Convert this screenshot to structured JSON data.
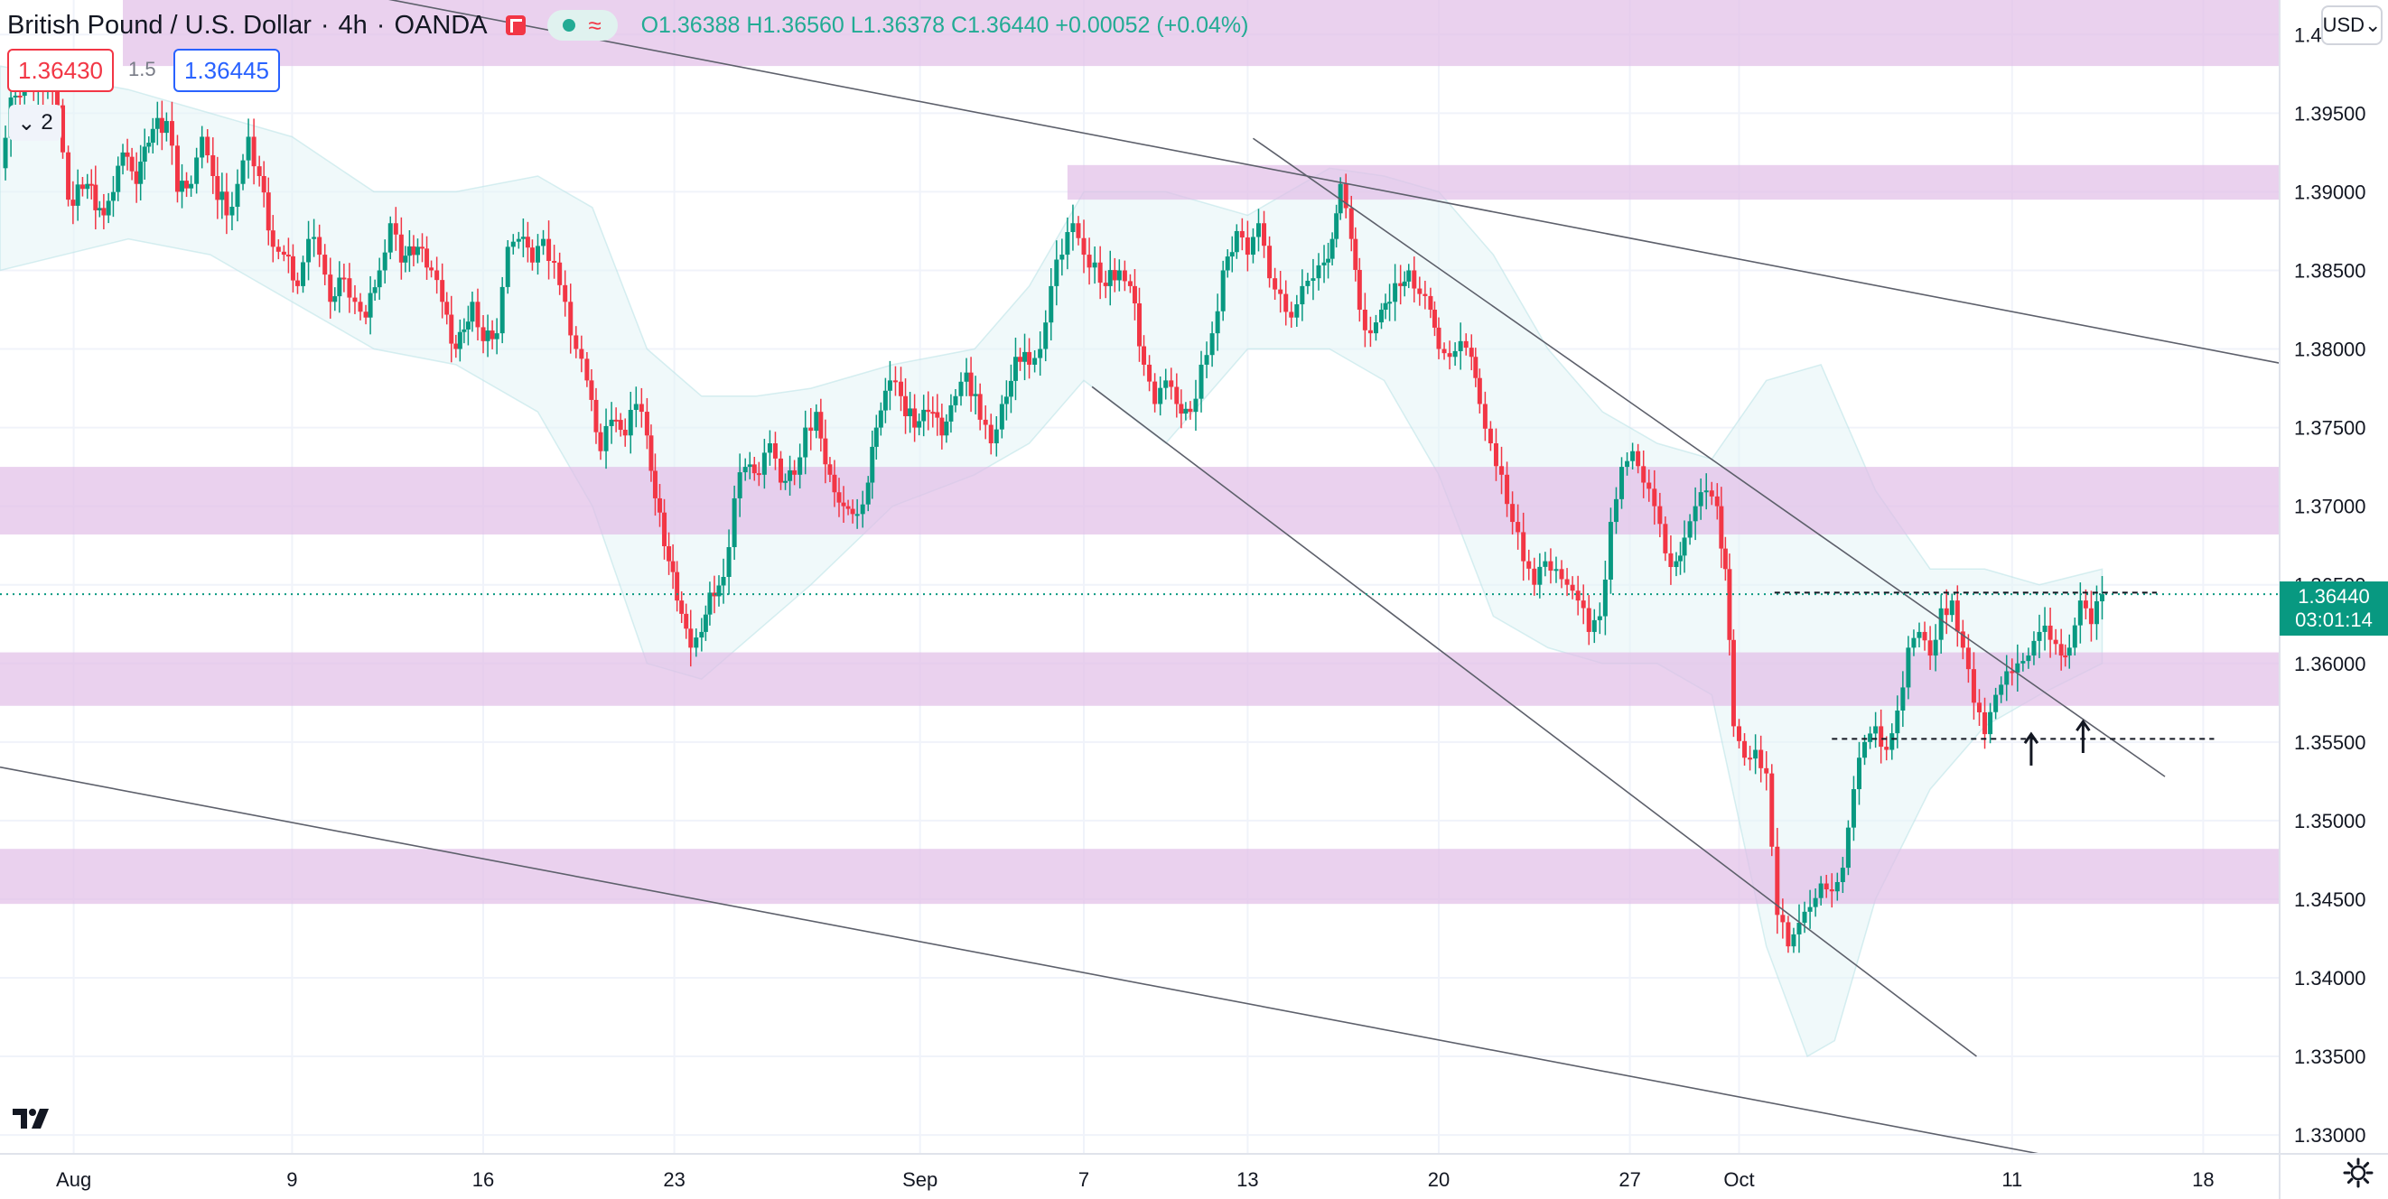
{
  "header": {
    "title": "British Pound / U.S. Dollar",
    "interval": "4h",
    "source": "OANDA",
    "open": "O1.36388",
    "high": "H1.36560",
    "low": "L1.36378",
    "close": "C1.36440",
    "change": "+0.00052 (+0.04%)"
  },
  "trade": {
    "sell": "1.36430",
    "spread": "1.5",
    "buy": "1.36445"
  },
  "indicators_count": "2",
  "currency": "USD",
  "current_price": {
    "value": "1.36440",
    "countdown": "03:01:14"
  },
  "colors": {
    "up": "#089981",
    "down": "#f23645",
    "zone": "#e1bee7",
    "band": "#e3f4f6"
  },
  "chart_data": {
    "type": "candlestick",
    "symbol": "GBPUSD",
    "timeframe": "4h",
    "y_ticks": [
      "1.40000",
      "1.39500",
      "1.39000",
      "1.38500",
      "1.38000",
      "1.37500",
      "1.37000",
      "1.36500",
      "1.36000",
      "1.35500",
      "1.35000",
      "1.34500",
      "1.34000",
      "1.33500",
      "1.33000"
    ],
    "x_ticks": [
      {
        "label": "Aug",
        "day": 0
      },
      {
        "label": "9",
        "day": 8
      },
      {
        "label": "16",
        "day": 15
      },
      {
        "label": "23",
        "day": 22
      },
      {
        "label": "Sep",
        "day": 31
      },
      {
        "label": "7",
        "day": 37
      },
      {
        "label": "13",
        "day": 43
      },
      {
        "label": "20",
        "day": 50
      },
      {
        "label": "27",
        "day": 57
      },
      {
        "label": "Oct",
        "day": 61
      },
      {
        "label": "11",
        "day": 71
      },
      {
        "label": "18",
        "day": 78
      }
    ],
    "ylim": [
      1.3288,
      1.4022
    ],
    "xlim_days": [
      -2.7,
      80.8
    ],
    "price_path": [
      [
        -2.7,
        1.3915
      ],
      [
        -2.3,
        1.396
      ],
      [
        -1.3,
        1.3975
      ],
      [
        -0.6,
        1.3955
      ],
      [
        -0.2,
        1.3895
      ],
      [
        0.5,
        1.3905
      ],
      [
        1.1,
        1.3885
      ],
      [
        1.8,
        1.3925
      ],
      [
        2.3,
        1.3905
      ],
      [
        2.9,
        1.394
      ],
      [
        3.4,
        1.3945
      ],
      [
        3.8,
        1.39
      ],
      [
        4.3,
        1.3905
      ],
      [
        4.7,
        1.3935
      ],
      [
        5.1,
        1.391
      ],
      [
        5.6,
        1.3885
      ],
      [
        6.0,
        1.3905
      ],
      [
        6.4,
        1.3935
      ],
      [
        6.8,
        1.391
      ],
      [
        7.3,
        1.3865
      ],
      [
        7.7,
        1.386
      ],
      [
        8.2,
        1.384
      ],
      [
        8.6,
        1.387
      ],
      [
        9.0,
        1.386
      ],
      [
        9.4,
        1.383
      ],
      [
        9.9,
        1.3845
      ],
      [
        10.3,
        1.383
      ],
      [
        10.7,
        1.382
      ],
      [
        11.2,
        1.385
      ],
      [
        11.6,
        1.388
      ],
      [
        12.0,
        1.3855
      ],
      [
        12.6,
        1.3865
      ],
      [
        13.1,
        1.385
      ],
      [
        13.5,
        1.383
      ],
      [
        14.0,
        1.38
      ],
      [
        14.6,
        1.383
      ],
      [
        15.0,
        1.3805
      ],
      [
        15.5,
        1.381
      ],
      [
        15.9,
        1.3865
      ],
      [
        16.3,
        1.387
      ],
      [
        16.8,
        1.3855
      ],
      [
        17.2,
        1.387
      ],
      [
        17.6,
        1.3855
      ],
      [
        18.0,
        1.383
      ],
      [
        18.4,
        1.38
      ],
      [
        18.8,
        1.378
      ],
      [
        19.3,
        1.3735
      ],
      [
        19.7,
        1.3755
      ],
      [
        20.2,
        1.3745
      ],
      [
        20.6,
        1.3765
      ],
      [
        21.0,
        1.3745
      ],
      [
        21.3,
        1.3705
      ],
      [
        21.8,
        1.3665
      ],
      [
        22.1,
        1.364
      ],
      [
        22.6,
        1.361
      ],
      [
        23.0,
        1.362
      ],
      [
        23.3,
        1.3645
      ],
      [
        23.8,
        1.3655
      ],
      [
        24.2,
        1.3705
      ],
      [
        24.6,
        1.3725
      ],
      [
        25.1,
        1.372
      ],
      [
        25.5,
        1.374
      ],
      [
        25.9,
        1.3715
      ],
      [
        26.4,
        1.372
      ],
      [
        26.8,
        1.375
      ],
      [
        27.2,
        1.376
      ],
      [
        27.7,
        1.372
      ],
      [
        28.2,
        1.37
      ],
      [
        28.7,
        1.3695
      ],
      [
        29.1,
        1.3715
      ],
      [
        29.4,
        1.375
      ],
      [
        29.9,
        1.378
      ],
      [
        30.3,
        1.377
      ],
      [
        30.8,
        1.375
      ],
      [
        31.3,
        1.376
      ],
      [
        31.8,
        1.3745
      ],
      [
        32.3,
        1.377
      ],
      [
        32.7,
        1.3785
      ],
      [
        33.2,
        1.3755
      ],
      [
        33.6,
        1.374
      ],
      [
        34.0,
        1.3765
      ],
      [
        34.5,
        1.3795
      ],
      [
        35.0,
        1.379
      ],
      [
        35.4,
        1.38
      ],
      [
        35.8,
        1.384
      ],
      [
        36.2,
        1.386
      ],
      [
        36.6,
        1.388
      ],
      [
        37.0,
        1.386
      ],
      [
        37.4,
        1.3855
      ],
      [
        37.8,
        1.384
      ],
      [
        38.3,
        1.385
      ],
      [
        38.7,
        1.384
      ],
      [
        39.2,
        1.379
      ],
      [
        39.6,
        1.3765
      ],
      [
        40.0,
        1.378
      ],
      [
        40.4,
        1.3765
      ],
      [
        40.9,
        1.376
      ],
      [
        41.3,
        1.379
      ],
      [
        41.7,
        1.381
      ],
      [
        42.1,
        1.385
      ],
      [
        42.6,
        1.3875
      ],
      [
        43.0,
        1.386
      ],
      [
        43.4,
        1.388
      ],
      [
        43.8,
        1.3845
      ],
      [
        44.2,
        1.3835
      ],
      [
        44.6,
        1.382
      ],
      [
        45.0,
        1.384
      ],
      [
        45.4,
        1.3845
      ],
      [
        45.8,
        1.3855
      ],
      [
        46.1,
        1.387
      ],
      [
        46.4,
        1.3905
      ],
      [
        46.8,
        1.387
      ],
      [
        47.1,
        1.3825
      ],
      [
        47.5,
        1.381
      ],
      [
        47.9,
        1.3825
      ],
      [
        48.2,
        1.383
      ],
      [
        48.6,
        1.384
      ],
      [
        48.9,
        1.385
      ],
      [
        49.3,
        1.3835
      ],
      [
        49.7,
        1.3825
      ],
      [
        50.0,
        1.38
      ],
      [
        50.4,
        1.3795
      ],
      [
        50.8,
        1.3805
      ],
      [
        51.2,
        1.3795
      ],
      [
        51.5,
        1.3765
      ],
      [
        51.9,
        1.374
      ],
      [
        52.3,
        1.372
      ],
      [
        52.7,
        1.369
      ],
      [
        53.1,
        1.3665
      ],
      [
        53.5,
        1.365
      ],
      [
        53.9,
        1.3665
      ],
      [
        54.3,
        1.366
      ],
      [
        54.7,
        1.365
      ],
      [
        55.1,
        1.364
      ],
      [
        55.5,
        1.362
      ],
      [
        55.9,
        1.363
      ],
      [
        56.3,
        1.369
      ],
      [
        56.7,
        1.3725
      ],
      [
        57.1,
        1.3735
      ],
      [
        57.5,
        1.3715
      ],
      [
        57.9,
        1.37
      ],
      [
        58.3,
        1.367
      ],
      [
        58.7,
        1.3665
      ],
      [
        59.0,
        1.368
      ],
      [
        59.4,
        1.37
      ],
      [
        59.8,
        1.371
      ],
      [
        60.2,
        1.37
      ],
      [
        60.5,
        1.366
      ],
      [
        60.8,
        1.356
      ],
      [
        61.2,
        1.354
      ],
      [
        61.6,
        1.3545
      ],
      [
        62.0,
        1.353
      ],
      [
        62.4,
        1.344
      ],
      [
        62.8,
        1.342
      ],
      [
        63.2,
        1.3435
      ],
      [
        63.6,
        1.3445
      ],
      [
        64.0,
        1.346
      ],
      [
        64.4,
        1.3455
      ],
      [
        64.8,
        1.347
      ],
      [
        65.2,
        1.352
      ],
      [
        65.6,
        1.355
      ],
      [
        66.0,
        1.356
      ],
      [
        66.4,
        1.3545
      ],
      [
        66.8,
        1.357
      ],
      [
        67.2,
        1.361
      ],
      [
        67.6,
        1.362
      ],
      [
        68.0,
        1.3605
      ],
      [
        68.4,
        1.3635
      ],
      [
        68.8,
        1.364
      ],
      [
        69.2,
        1.361
      ],
      [
        69.6,
        1.3575
      ],
      [
        70.0,
        1.3555
      ],
      [
        70.4,
        1.358
      ],
      [
        70.8,
        1.3595
      ],
      [
        71.2,
        1.36
      ],
      [
        71.6,
        1.3605
      ],
      [
        72.0,
        1.362
      ],
      [
        72.4,
        1.3615
      ],
      [
        72.8,
        1.3605
      ],
      [
        73.1,
        1.361
      ],
      [
        73.5,
        1.364
      ],
      [
        73.9,
        1.3625
      ],
      [
        74.3,
        1.3644
      ]
    ],
    "bands_upper": [
      [
        -2.7,
        1.398
      ],
      [
        2,
        1.3965
      ],
      [
        5,
        1.395
      ],
      [
        8,
        1.3935
      ],
      [
        11,
        1.39
      ],
      [
        14,
        1.39
      ],
      [
        17,
        1.391
      ],
      [
        19,
        1.389
      ],
      [
        21,
        1.38
      ],
      [
        23,
        1.377
      ],
      [
        25,
        1.377
      ],
      [
        27,
        1.3775
      ],
      [
        30,
        1.379
      ],
      [
        33,
        1.38
      ],
      [
        35,
        1.384
      ],
      [
        37,
        1.39
      ],
      [
        40,
        1.39
      ],
      [
        43,
        1.3885
      ],
      [
        46,
        1.3915
      ],
      [
        48,
        1.391
      ],
      [
        50,
        1.39
      ],
      [
        52,
        1.386
      ],
      [
        54,
        1.38
      ],
      [
        56,
        1.376
      ],
      [
        58,
        1.374
      ],
      [
        60,
        1.373
      ],
      [
        62,
        1.378
      ],
      [
        64,
        1.379
      ],
      [
        66,
        1.371
      ],
      [
        68,
        1.366
      ],
      [
        70,
        1.366
      ],
      [
        72,
        1.365
      ],
      [
        74.3,
        1.366
      ]
    ],
    "bands_lower": [
      [
        -2.7,
        1.385
      ],
      [
        2,
        1.387
      ],
      [
        5,
        1.386
      ],
      [
        8,
        1.383
      ],
      [
        11,
        1.38
      ],
      [
        14,
        1.379
      ],
      [
        17,
        1.376
      ],
      [
        19,
        1.37
      ],
      [
        21,
        1.36
      ],
      [
        23,
        1.359
      ],
      [
        25,
        1.362
      ],
      [
        27,
        1.365
      ],
      [
        30,
        1.37
      ],
      [
        33,
        1.372
      ],
      [
        35,
        1.374
      ],
      [
        37,
        1.378
      ],
      [
        40,
        1.374
      ],
      [
        43,
        1.38
      ],
      [
        46,
        1.38
      ],
      [
        48,
        1.378
      ],
      [
        50,
        1.372
      ],
      [
        52,
        1.363
      ],
      [
        54,
        1.361
      ],
      [
        56,
        1.36
      ],
      [
        58,
        1.36
      ],
      [
        60,
        1.358
      ],
      [
        62,
        1.342
      ],
      [
        63.5,
        1.335
      ],
      [
        64.5,
        1.336
      ],
      [
        66,
        1.345
      ],
      [
        68,
        1.352
      ],
      [
        70,
        1.356
      ],
      [
        72,
        1.358
      ],
      [
        74.3,
        1.36
      ]
    ],
    "zones": [
      [
        1.398,
        1.4022
      ],
      [
        1.3895,
        1.3917
      ],
      [
        1.3682,
        1.3725
      ],
      [
        1.3573,
        1.3607
      ],
      [
        1.3447,
        1.3482
      ]
    ],
    "trendlines": [
      [
        [
          -2.7,
          1.407
        ],
        [
          80.8,
          1.3791
        ]
      ],
      [
        [
          -2.7,
          1.3534
        ],
        [
          72,
          1.3288
        ]
      ],
      [
        [
          43.2,
          1.3934
        ],
        [
          76.6,
          1.3528
        ]
      ],
      [
        [
          37.3,
          1.3776
        ],
        [
          69.7,
          1.335
        ]
      ]
    ],
    "levels": [
      {
        "price": 1.3644,
        "from": -2.7,
        "to": 80.8,
        "style": "dotted"
      },
      {
        "price": 1.3645,
        "from": 62.3,
        "to": 76.3,
        "style": "dashed"
      },
      {
        "price": 1.3552,
        "from": 64.4,
        "to": 78.4,
        "style": "dashed"
      }
    ],
    "arrows": [
      [
        71.7,
        1.3535,
        1.3555
      ],
      [
        73.6,
        1.3543,
        1.3563
      ]
    ]
  }
}
